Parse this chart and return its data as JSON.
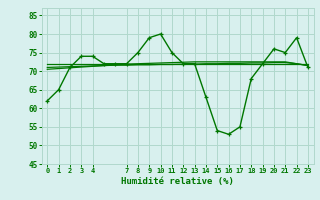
{
  "x_main": [
    0,
    1,
    2,
    3,
    4,
    5,
    6,
    7,
    8,
    9,
    10,
    11,
    12,
    13,
    14,
    15,
    16,
    17,
    18,
    19,
    20,
    21,
    22,
    23
  ],
  "y_main": [
    62,
    65,
    71,
    74,
    74,
    72,
    72,
    72,
    75,
    79,
    80,
    75,
    72,
    72,
    63,
    54,
    53,
    55,
    68,
    72,
    76,
    75,
    79,
    71
  ],
  "y_flat": [
    72,
    72,
    72,
    72,
    72,
    72,
    72,
    72,
    72,
    72,
    72,
    72,
    72,
    72,
    72,
    72,
    72,
    72,
    72,
    72,
    72,
    72,
    72,
    72
  ],
  "y_trend1": [
    71.0,
    71.1,
    71.2,
    71.3,
    71.4,
    71.5,
    71.6,
    71.6,
    71.7,
    71.7,
    71.8,
    71.8,
    71.9,
    71.9,
    72.0,
    72.0,
    72.1,
    72.1,
    72.2,
    72.2,
    72.3,
    72.3,
    72.0,
    71.5
  ],
  "y_trend2": [
    70.5,
    70.7,
    70.9,
    71.1,
    71.3,
    71.5,
    71.7,
    71.9,
    72.0,
    72.1,
    72.2,
    72.3,
    72.4,
    72.5,
    72.5,
    72.5,
    72.5,
    72.5,
    72.5,
    72.5,
    72.5,
    72.5,
    72.0,
    71.5
  ],
  "background_color": "#d8f0ee",
  "grid_color": "#b0d8cc",
  "line_color": "#007700",
  "xlabel": "Humidité relative (%)",
  "ylim": [
    45,
    87
  ],
  "yticks": [
    45,
    50,
    55,
    60,
    65,
    70,
    75,
    80,
    85
  ],
  "xticks": [
    0,
    1,
    2,
    3,
    4,
    7,
    8,
    9,
    10,
    11,
    12,
    13,
    14,
    15,
    16,
    17,
    18,
    19,
    20,
    21,
    22,
    23
  ]
}
